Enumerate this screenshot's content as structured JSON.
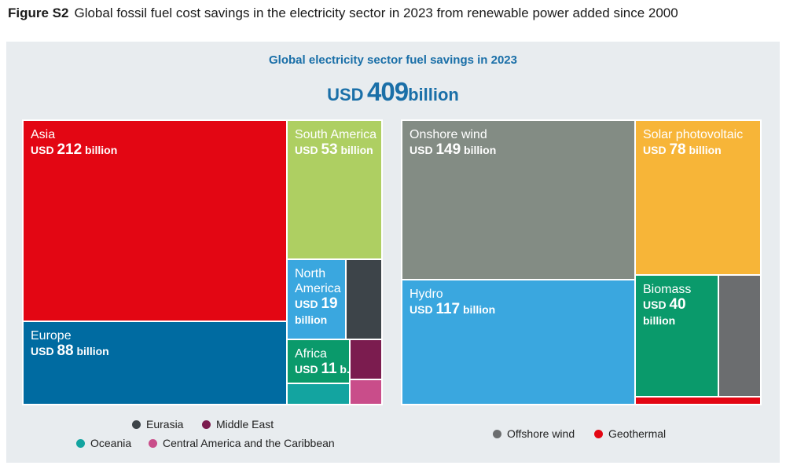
{
  "figure": {
    "label": "Figure S2",
    "title": "Global fossil fuel cost savings in the electricity sector in 2023 from renewable power added since 2000"
  },
  "headline": {
    "subtitle": "Global electricity sector fuel savings in 2023",
    "total_prefix": "USD",
    "total_value": "409",
    "total_suffix": "billion"
  },
  "chart_data": [
    {
      "type": "treemap",
      "title": "",
      "unit": "USD billion",
      "items": [
        {
          "name": "Asia",
          "value": 212,
          "line1": "USD",
          "value_text": "212",
          "line2": "billion",
          "color": "#e30613"
        },
        {
          "name": "Europe",
          "value": 88,
          "line1": "USD",
          "value_text": "88",
          "line2": "billion",
          "color": "#006ba1"
        },
        {
          "name": "South America",
          "value": 53,
          "line1": "USD",
          "value_text": "53",
          "line2": "billion",
          "color": "#aecf62"
        },
        {
          "name": "North America",
          "value": 19,
          "line1": "USD",
          "value_text": "19",
          "line2": "billion",
          "color": "#3aa7df"
        },
        {
          "name": "Eurasia",
          "value": null,
          "color": "#3d4449"
        },
        {
          "name": "Africa",
          "value": 11,
          "line1": "USD",
          "value_text": "11",
          "line2": "b.",
          "color": "#0a9a6b"
        },
        {
          "name": "Middle East",
          "value": null,
          "color": "#7b1c4f"
        },
        {
          "name": "Central America and the Caribbean",
          "value": null,
          "color": "#c94d8a"
        },
        {
          "name": "Oceania",
          "value": null,
          "color": "#13a4a0"
        }
      ],
      "legend": [
        "Eurasia",
        "Middle East",
        "Oceania",
        "Central America and the Caribbean"
      ]
    },
    {
      "type": "treemap",
      "title": "",
      "unit": "USD billion",
      "items": [
        {
          "name": "Onshore wind",
          "value": 149,
          "line1": "USD",
          "value_text": "149",
          "line2": "billion",
          "color": "#838c84"
        },
        {
          "name": "Solar photovoltaic",
          "value": 78,
          "line1": "USD",
          "value_text": "78",
          "line2": "billion",
          "color": "#f7b538"
        },
        {
          "name": "Hydro",
          "value": 117,
          "line1": "USD",
          "value_text": "117",
          "line2": "billion",
          "color": "#3aa7df"
        },
        {
          "name": "Biomass",
          "value": 40,
          "line1": "USD",
          "value_text": "40",
          "line2": "billion",
          "color": "#0a9a6b"
        },
        {
          "name": "Offshore wind",
          "value": null,
          "color": "#6b6d6f"
        },
        {
          "name": "Geothermal",
          "value": null,
          "color": "#e30613"
        }
      ],
      "legend": [
        "Offshore wind",
        "Geothermal"
      ]
    }
  ]
}
